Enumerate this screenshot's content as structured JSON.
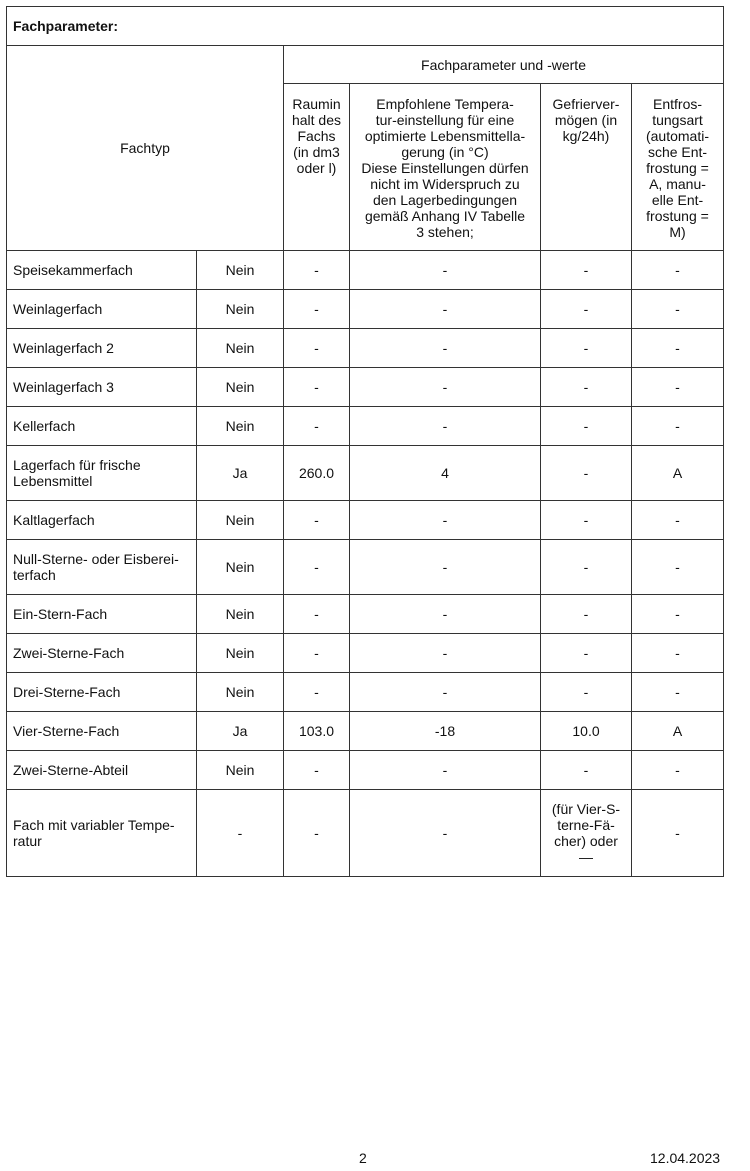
{
  "title": "Fachparameter:",
  "header": {
    "fachtyp": "Fachtyp",
    "group": "Fachparameter und -werte",
    "columns": [
      "Raumin\nhalt des\nFachs\n(in dm3\noder l)",
      "Empfohlene Tempera-\ntur-einstellung für eine\noptimierte Lebensmittella-\ngerung (in °C)\nDiese Einstellungen dürfen\nnicht im Widerspruch zu\nden Lagerbedingungen\ngemäß Anhang IV Tabelle\n3 stehen;",
      "Gefrierver-\nmögen (in\nkg/24h)",
      "Entfros-\ntungsart\n(automati-\nsche Ent-\nfrostung =\nA, manu-\nelle Ent-\nfrostung =\nM)"
    ]
  },
  "rows": [
    [
      "Speisekammerfach",
      "Nein",
      "-",
      "-",
      "-",
      "-"
    ],
    [
      "Weinlagerfach",
      "Nein",
      "-",
      "-",
      "-",
      "-"
    ],
    [
      "Weinlagerfach 2",
      "Nein",
      "-",
      "-",
      "-",
      "-"
    ],
    [
      "Weinlagerfach 3",
      "Nein",
      "-",
      "-",
      "-",
      "-"
    ],
    [
      "Kellerfach",
      "Nein",
      "-",
      "-",
      "-",
      "-"
    ],
    [
      "Lagerfach für frische\nLebensmittel",
      "Ja",
      "260.0",
      "4",
      "-",
      "A"
    ],
    [
      "Kaltlagerfach",
      "Nein",
      "-",
      "-",
      "-",
      "-"
    ],
    [
      "Null-Sterne- oder Eisberei-\nterfach",
      "Nein",
      "-",
      "-",
      "-",
      "-"
    ],
    [
      "Ein-Stern-Fach",
      "Nein",
      "-",
      "-",
      "-",
      "-"
    ],
    [
      "Zwei-Sterne-Fach",
      "Nein",
      "-",
      "-",
      "-",
      "-"
    ],
    [
      "Drei-Sterne-Fach",
      "Nein",
      "-",
      "-",
      "-",
      "-"
    ],
    [
      "Vier-Sterne-Fach",
      "Ja",
      "103.0",
      "-18",
      "10.0",
      "A"
    ],
    [
      "Zwei-Sterne-Abteil",
      "Nein",
      "-",
      "-",
      "-",
      "-"
    ],
    [
      "Fach mit variabler Tempe-\nratur",
      "-",
      "-",
      "-",
      " (für Vier-S-\nterne-Fä-\ncher) oder\n—",
      "-"
    ]
  ],
  "footer": {
    "page": "2",
    "date": "12.04.2023"
  }
}
